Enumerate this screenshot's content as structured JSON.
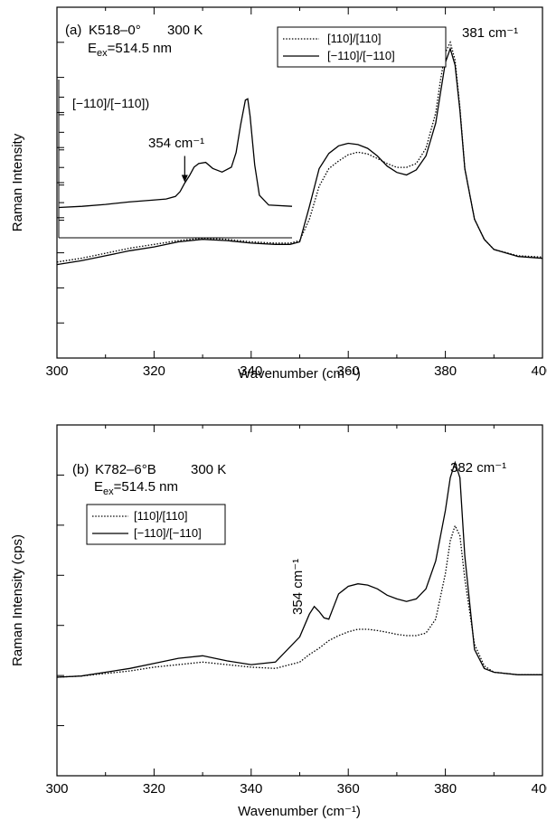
{
  "chart_data": [
    {
      "type": "line",
      "panel_label": "(a)",
      "sample": "K518–0°",
      "temperature": "300 K",
      "excitation": {
        "prefix": "E",
        "sub": "ex",
        "value": "=514.5 nm"
      },
      "xlabel": "Wavenumber (cm⁻¹)",
      "ylabel": "Raman Intensity",
      "xlim": [
        300,
        400
      ],
      "ylim": [
        0,
        1
      ],
      "x_ticks": [
        300,
        320,
        340,
        360,
        380,
        400
      ],
      "x_tick_labels": [
        "300",
        "320",
        "340",
        "360",
        "380",
        "400"
      ],
      "grid": false,
      "legend_position": "top-right",
      "annotations": [
        {
          "text": "381 cm⁻¹",
          "x": 381
        }
      ],
      "series": [
        {
          "name": "[110]/[110]",
          "style": "dotted",
          "x": [
            300,
            305,
            310,
            315,
            320,
            325,
            330,
            335,
            340,
            345,
            348,
            350,
            352,
            354,
            356,
            358,
            360,
            362,
            364,
            366,
            368,
            370,
            372,
            374,
            376,
            378,
            379,
            380,
            381,
            382,
            383,
            384,
            386,
            388,
            390,
            395,
            400
          ],
          "values": [
            0.13,
            0.145,
            0.165,
            0.185,
            0.2,
            0.215,
            0.225,
            0.22,
            0.21,
            0.205,
            0.205,
            0.215,
            0.3,
            0.43,
            0.5,
            0.53,
            0.555,
            0.565,
            0.558,
            0.54,
            0.52,
            0.505,
            0.505,
            0.52,
            0.58,
            0.72,
            0.85,
            0.96,
            1.0,
            0.93,
            0.74,
            0.5,
            0.3,
            0.22,
            0.18,
            0.155,
            0.15
          ]
        },
        {
          "name": "[−110]/[−110]",
          "style": "solid",
          "x": [
            300,
            305,
            310,
            315,
            320,
            325,
            330,
            335,
            340,
            345,
            348,
            350,
            352,
            354,
            356,
            358,
            360,
            362,
            364,
            366,
            368,
            370,
            372,
            374,
            376,
            378,
            379,
            380,
            381,
            382,
            383,
            384,
            386,
            388,
            390,
            395,
            400
          ],
          "values": [
            0.12,
            0.135,
            0.155,
            0.175,
            0.19,
            0.21,
            0.22,
            0.215,
            0.205,
            0.2,
            0.2,
            0.21,
            0.35,
            0.5,
            0.56,
            0.59,
            0.6,
            0.595,
            0.58,
            0.55,
            0.51,
            0.485,
            0.475,
            0.495,
            0.55,
            0.68,
            0.8,
            0.92,
            0.975,
            0.91,
            0.73,
            0.5,
            0.3,
            0.22,
            0.18,
            0.152,
            0.145
          ]
        }
      ],
      "inset": {
        "label": "[−110]/[−110])",
        "annotation": "354 cm⁻¹",
        "arrow_x": 354,
        "xlim": [
          300,
          400
        ],
        "ylim": [
          0,
          1
        ],
        "x": [
          300,
          310,
          320,
          330,
          340,
          346,
          350,
          352,
          354,
          356,
          358,
          360,
          363,
          366,
          370,
          374,
          376,
          378,
          380,
          381,
          382,
          384,
          386,
          390,
          400
        ],
        "values": [
          0.1,
          0.11,
          0.125,
          0.145,
          0.16,
          0.17,
          0.19,
          0.23,
          0.3,
          0.36,
          0.43,
          0.46,
          0.47,
          0.42,
          0.39,
          0.43,
          0.55,
          0.78,
          0.98,
          0.99,
          0.85,
          0.45,
          0.2,
          0.12,
          0.11
        ]
      }
    },
    {
      "type": "line",
      "panel_label": "(b)",
      "sample": "K782–6°B",
      "temperature": "300 K",
      "excitation": {
        "prefix": "E",
        "sub": "ex",
        "value": "=514.5 nm"
      },
      "xlabel": "Wavenumber (cm⁻¹)",
      "ylabel": "Raman Intensity (cps)",
      "xlim": [
        300,
        400
      ],
      "ylim": [
        0,
        1
      ],
      "x_ticks": [
        300,
        320,
        340,
        360,
        380,
        400
      ],
      "x_tick_labels": [
        "300",
        "320",
        "340",
        "360",
        "380",
        "400"
      ],
      "grid": false,
      "legend_position": "top-left",
      "annotations": [
        {
          "text": "382 cm⁻¹",
          "x": 382
        },
        {
          "text": "354 cm⁻¹",
          "x": 354,
          "rotated": true
        }
      ],
      "series": [
        {
          "name": "[110]/[110]",
          "style": "dotted",
          "x": [
            300,
            305,
            310,
            315,
            320,
            325,
            330,
            335,
            340,
            345,
            350,
            352,
            354,
            356,
            358,
            360,
            362,
            364,
            366,
            368,
            370,
            372,
            374,
            376,
            378,
            380,
            381,
            382,
            383,
            384,
            386,
            388,
            390,
            395,
            400
          ],
          "values": [
            0.14,
            0.145,
            0.155,
            0.165,
            0.18,
            0.19,
            0.2,
            0.19,
            0.18,
            0.175,
            0.2,
            0.23,
            0.255,
            0.285,
            0.305,
            0.32,
            0.33,
            0.33,
            0.325,
            0.318,
            0.31,
            0.305,
            0.305,
            0.315,
            0.37,
            0.55,
            0.68,
            0.74,
            0.7,
            0.53,
            0.27,
            0.185,
            0.16,
            0.15,
            0.15
          ]
        },
        {
          "name": "[−110]/[−110]",
          "style": "solid",
          "x": [
            300,
            305,
            310,
            315,
            320,
            325,
            330,
            335,
            340,
            345,
            350,
            352,
            353,
            354,
            355,
            356,
            357,
            358,
            360,
            362,
            364,
            366,
            368,
            370,
            372,
            374,
            376,
            378,
            380,
            381,
            382,
            383,
            384,
            386,
            388,
            390,
            395,
            400
          ],
          "values": [
            0.14,
            0.145,
            0.16,
            0.175,
            0.195,
            0.215,
            0.225,
            0.205,
            0.19,
            0.2,
            0.3,
            0.39,
            0.42,
            0.4,
            0.375,
            0.37,
            0.42,
            0.47,
            0.5,
            0.51,
            0.505,
            0.49,
            0.465,
            0.45,
            0.44,
            0.45,
            0.49,
            0.6,
            0.8,
            0.93,
            0.99,
            0.93,
            0.62,
            0.25,
            0.175,
            0.16,
            0.15,
            0.15
          ]
        }
      ]
    }
  ]
}
